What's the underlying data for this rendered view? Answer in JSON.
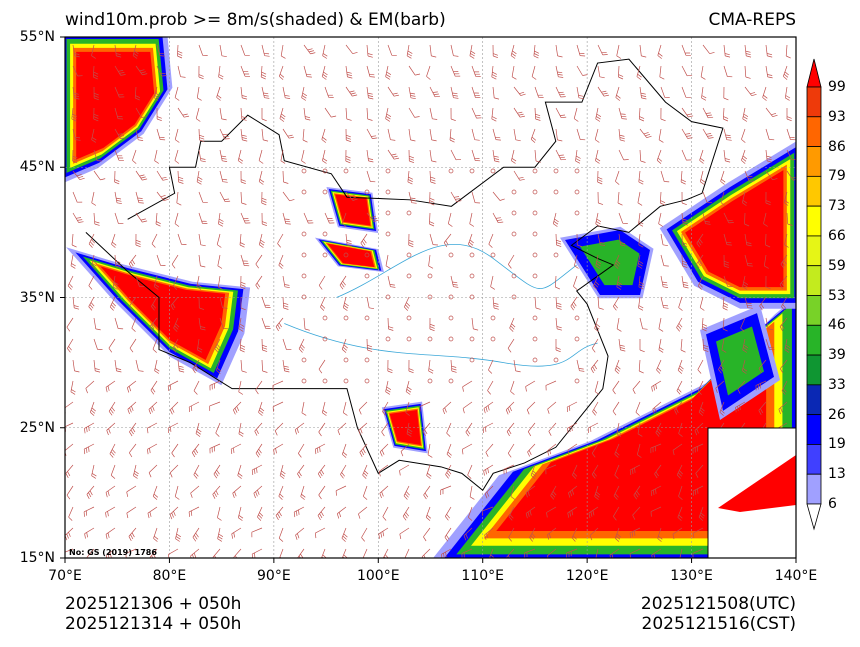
{
  "header": {
    "title": "wind10m.prob >= 8m/s(shaded) & EM(barb)",
    "model": "CMA-REPS"
  },
  "axes": {
    "lat_labels": [
      "55°N",
      "45°N",
      "35°N",
      "25°N",
      "15°N"
    ],
    "lat_values": [
      55,
      45,
      35,
      25,
      15
    ],
    "lon_labels": [
      "70°E",
      "80°E",
      "90°E",
      "100°E",
      "110°E",
      "120°E",
      "130°E",
      "140°E"
    ],
    "lon_values": [
      70,
      80,
      90,
      100,
      110,
      120,
      130,
      140
    ],
    "extent": {
      "lon": [
        70,
        140
      ],
      "lat": [
        15,
        55
      ]
    }
  },
  "colorbar": {
    "labels": [
      "99",
      "93",
      "86",
      "79",
      "73",
      "66",
      "59",
      "53",
      "46",
      "39",
      "33",
      "26",
      "19",
      "13",
      "6"
    ],
    "colors": [
      "#ff0000",
      "#ee3a0a",
      "#ff6600",
      "#ff9a00",
      "#ffc800",
      "#ffff00",
      "#e6f516",
      "#c3eb1e",
      "#78d228",
      "#28b428",
      "#0f9632",
      "#0a28b4",
      "#0000ff",
      "#4040ff",
      "#a0a0ff"
    ]
  },
  "map_note": "No: GS (2019) 1786",
  "footer": {
    "init_utc": "2025121306  +  050h",
    "init_cst": "2025121314  +  050h",
    "valid_utc": "2025121508(UTC)",
    "valid_cst": "2025121516(CST)"
  },
  "colors": {
    "barb": "#c0504d",
    "river": "#3aa7d8",
    "border": "#000000"
  }
}
